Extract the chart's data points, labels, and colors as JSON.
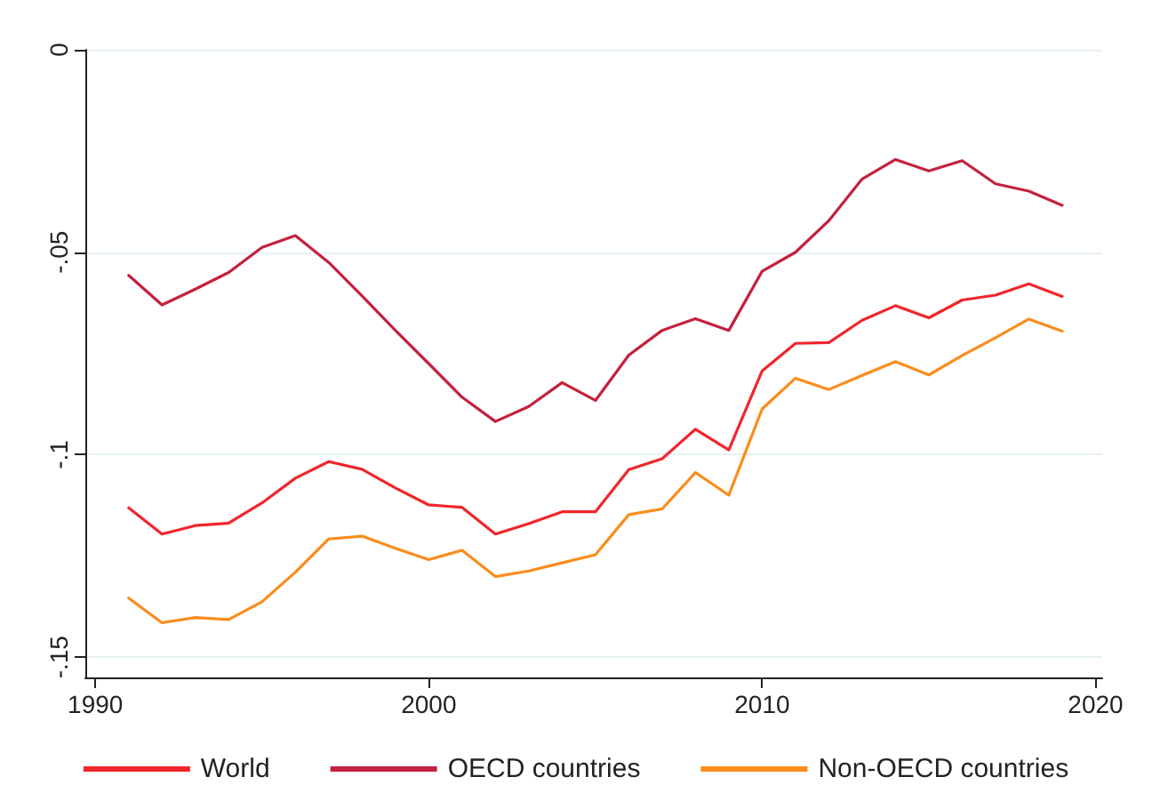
{
  "chart_data": {
    "type": "line",
    "x": [
      1991,
      1992,
      1993,
      1994,
      1995,
      1996,
      1997,
      1998,
      1999,
      2000,
      2001,
      2002,
      2003,
      2004,
      2005,
      2006,
      2007,
      2008,
      2009,
      2010,
      2011,
      2012,
      2013,
      2014,
      2015,
      2016,
      2017,
      2018,
      2019
    ],
    "series": [
      {
        "name": "World",
        "color": "#f0262c",
        "values": [
          -0.1131,
          -0.1196,
          -0.1175,
          -0.1169,
          -0.1119,
          -0.1058,
          -0.1017,
          -0.1036,
          -0.1082,
          -0.1124,
          -0.113,
          -0.1196,
          -0.117,
          -0.1141,
          -0.1141,
          -0.1037,
          -0.101,
          -0.0937,
          -0.0988,
          -0.0793,
          -0.0725,
          -0.0723,
          -0.0668,
          -0.0632,
          -0.0662,
          -0.0618,
          -0.0606,
          -0.0578,
          -0.0609
        ]
      },
      {
        "name": "OECD countries",
        "color": "#c4213f",
        "values": [
          -0.0557,
          -0.063,
          -0.0591,
          -0.055,
          -0.0488,
          -0.0459,
          -0.0525,
          -0.0608,
          -0.0693,
          -0.0775,
          -0.0858,
          -0.0918,
          -0.0881,
          -0.0822,
          -0.0866,
          -0.0754,
          -0.0693,
          -0.0664,
          -0.0693,
          -0.0547,
          -0.05,
          -0.0422,
          -0.0319,
          -0.0271,
          -0.0299,
          -0.0274,
          -0.0331,
          -0.0349,
          -0.0384
        ]
      },
      {
        "name": "Non-OECD countries",
        "color": "#fb8c1c",
        "values": [
          -0.1354,
          -0.1415,
          -0.1402,
          -0.1407,
          -0.1363,
          -0.129,
          -0.1208,
          -0.1201,
          -0.1231,
          -0.1259,
          -0.1236,
          -0.1301,
          -0.1287,
          -0.1267,
          -0.1247,
          -0.1148,
          -0.1134,
          -0.1044,
          -0.11,
          -0.0887,
          -0.0811,
          -0.0839,
          -0.0804,
          -0.077,
          -0.0803,
          -0.0755,
          -0.0711,
          -0.0665,
          -0.0695
        ]
      }
    ],
    "xlim": [
      1989.7,
      2020.2
    ],
    "xticks": [
      1990,
      2000,
      2010,
      2020
    ],
    "ylim": [
      -0.155,
      0
    ],
    "yticks": [
      0,
      {
        "value": -0.05,
        "label": "-.05"
      },
      {
        "value": -0.1,
        "label": "-.1"
      },
      {
        "value": -0.15,
        "label": "-.15"
      }
    ],
    "grid": "y",
    "legend": "bottom",
    "marker": "none",
    "line_style": "solid"
  }
}
